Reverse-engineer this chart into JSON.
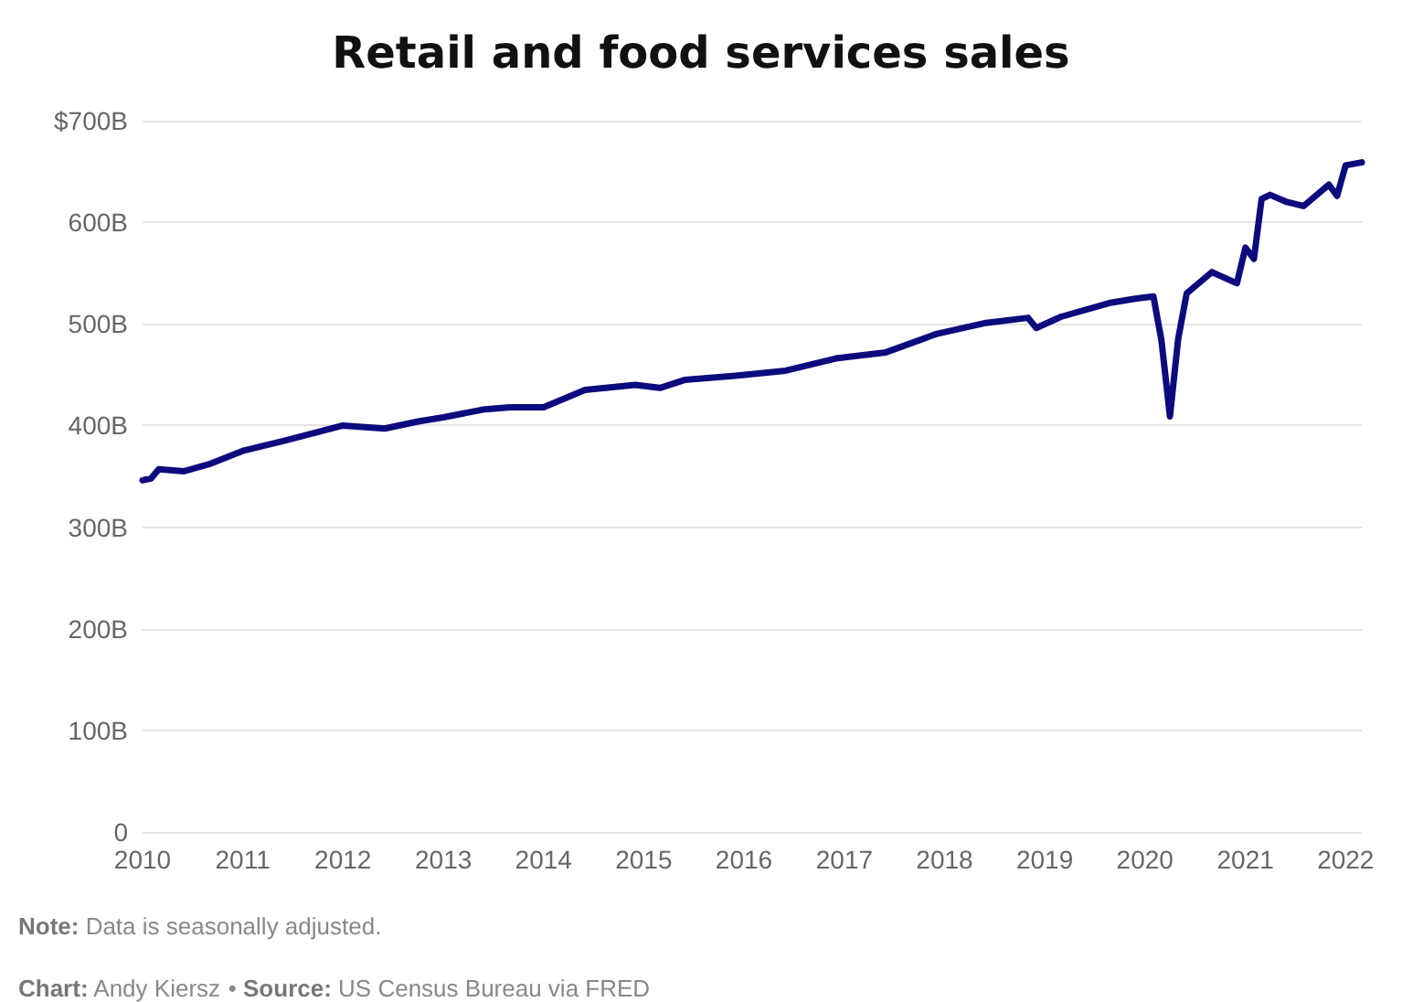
{
  "chart_data": {
    "type": "line",
    "title": "Retail and food services sales",
    "x": [
      "2010-01",
      "2010-02",
      "2010-03",
      "2010-06",
      "2010-09",
      "2011-01",
      "2011-06",
      "2012-01",
      "2012-06",
      "2012-10",
      "2013-01",
      "2013-06",
      "2013-09",
      "2014-01",
      "2014-06",
      "2014-12",
      "2015-03",
      "2015-06",
      "2015-12",
      "2016-06",
      "2016-12",
      "2017-06",
      "2017-12",
      "2018-06",
      "2018-11",
      "2018-12",
      "2019-03",
      "2019-09",
      "2019-12",
      "2020-02",
      "2020-03",
      "2020-04",
      "2020-05",
      "2020-06",
      "2020-09",
      "2020-12",
      "2021-01",
      "2021-02",
      "2021-03",
      "2021-04",
      "2021-06",
      "2021-08",
      "2021-10",
      "2021-11",
      "2021-12",
      "2022-01",
      "2022-03"
    ],
    "series": [
      {
        "color": "#0b0b7e",
        "values": [
          346,
          348,
          357,
          355,
          362,
          375,
          385,
          400,
          397,
          404,
          408,
          416,
          418,
          418,
          435,
          440,
          437,
          445,
          449,
          454,
          466,
          472,
          490,
          501,
          506,
          496,
          507,
          521,
          525,
          527,
          484,
          409,
          485,
          530,
          551,
          540,
          575,
          564,
          623,
          627,
          620,
          616,
          630,
          637,
          626,
          656,
          659
        ]
      }
    ],
    "xlim": [
      "2010-01",
      "2022-03"
    ],
    "xticks": [
      "2010",
      "2011",
      "2012",
      "2013",
      "2014",
      "2015",
      "2016",
      "2017",
      "2018",
      "2019",
      "2020",
      "2021",
      "2022"
    ],
    "ylim": [
      0,
      700
    ],
    "yticks": [
      0,
      {
        "value": 100,
        "label": "100B"
      },
      {
        "value": 200,
        "label": "200B"
      },
      {
        "value": 300,
        "label": "300B"
      },
      {
        "value": 400,
        "label": "400B"
      },
      {
        "value": 500,
        "label": "500B"
      },
      {
        "value": 600,
        "label": "600B"
      },
      {
        "value": 700,
        "label": "$700B"
      }
    ],
    "grid": "y",
    "marker": "none",
    "line_style": "solid",
    "annotations": [
      "Note: Data is seasonally adjusted.",
      "Chart: Andy Kiersz • Source: US Census Bureau via FRED"
    ]
  }
}
